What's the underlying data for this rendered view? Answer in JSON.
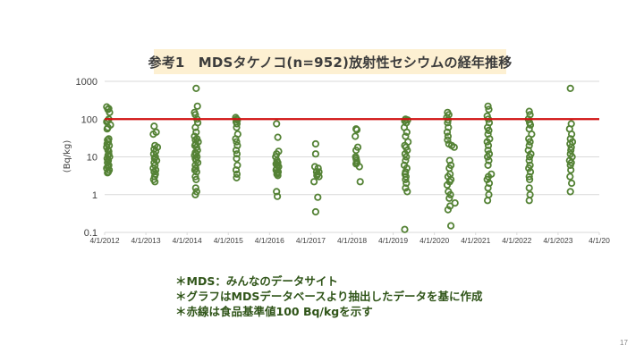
{
  "slide": {
    "page_number": "17",
    "notes": [
      "＊MDS：みんなのデータサイト",
      "＊グラフはMDSデータベースより抽出したデータを基に作成",
      "＊赤線は食品基準値100 Bq/kgを示す"
    ]
  },
  "colors": {
    "marker": "#548235",
    "reference_line": "#d01010",
    "grid": "#d9d9d9",
    "title_bg": "#fdf0d2"
  },
  "chart_data": {
    "type": "scatter",
    "title": "参考1　MDSタケノコ(n=952)放射性セシウムの経年推移",
    "xlabel": "",
    "ylabel": "(Bq/kg)",
    "yscale": "log",
    "ylim": [
      0.1,
      1000
    ],
    "yticks": [
      "1000",
      "100",
      "10",
      "1",
      "0.1"
    ],
    "ytick_values": [
      1000,
      100,
      10,
      1,
      0.1
    ],
    "xlim": [
      2012,
      2024
    ],
    "xticks": [
      "4/1/2012",
      "4/1/2013",
      "4/1/2014",
      "4/1/2015",
      "4/1/2016",
      "4/1/2017",
      "4/1/2018",
      "4/1/2019",
      "4/1/2020",
      "4/1/2021",
      "4/1/2022",
      "4/1/2023",
      "4/1/20"
    ],
    "grid": true,
    "reference_line": {
      "value": 100,
      "label": "食品基準値100 Bq/kg"
    },
    "series": [
      {
        "name": "2012",
        "x": [
          2012.05,
          2012.08,
          2012.1,
          2012.12,
          2012.07,
          2012.1,
          2012.05,
          2012.14,
          2012.08,
          2012.06,
          2012.1,
          2012.09,
          2012.07,
          2012.11,
          2012.05,
          2012.08,
          2012.1,
          2012.12,
          2012.06,
          2012.09,
          2012.07,
          2012.1,
          2012.08,
          2012.05,
          2012.11,
          2012.09,
          2012.07,
          2012.06,
          2012.1,
          2012.08
        ],
        "y": [
          210,
          180,
          190,
          150,
          90,
          100,
          85,
          70,
          60,
          55,
          30,
          25,
          28,
          20,
          18,
          15,
          12,
          10,
          9,
          8,
          7,
          6,
          5.5,
          5,
          4.5,
          4,
          3.8,
          22,
          14,
          11
        ]
      },
      {
        "name": "2013",
        "x": [
          2013.2,
          2013.25,
          2013.18,
          2013.22,
          2013.28,
          2013.2,
          2013.24,
          2013.19,
          2013.23,
          2013.21,
          2013.26,
          2013.2,
          2013.22,
          2013.18,
          2013.24,
          2013.2,
          2013.23,
          2013.21,
          2013.19,
          2013.22
        ],
        "y": [
          65,
          45,
          40,
          20,
          18,
          16,
          14,
          12,
          10,
          9,
          8,
          7,
          6,
          5,
          4.5,
          4,
          3.5,
          3,
          2.5,
          2.2
        ]
      },
      {
        "name": "2014",
        "x": [
          2014.22,
          2014.25,
          2014.18,
          2014.2,
          2014.24,
          2014.26,
          2014.2,
          2014.22,
          2014.18,
          2014.24,
          2014.2,
          2014.27,
          2014.21,
          2014.19,
          2014.23,
          2014.25,
          2014.2,
          2014.22,
          2014.18,
          2014.24,
          2014.2,
          2014.22,
          2014.26,
          2014.2,
          2014.21,
          2014.19,
          2014.23,
          2014.2,
          2014.22,
          2014.21,
          2014.23,
          2014.2
        ],
        "y": [
          650,
          220,
          150,
          130,
          100,
          80,
          60,
          45,
          35,
          30,
          28,
          25,
          22,
          20,
          18,
          15,
          13,
          12,
          11,
          10,
          9,
          8,
          7,
          6,
          5,
          4.5,
          4,
          3,
          2.5,
          1.5,
          1.2,
          1
        ]
      },
      {
        "name": "2015",
        "x": [
          2015.18,
          2015.2,
          2015.22,
          2015.19,
          2015.21,
          2015.2,
          2015.23,
          2015.18,
          2015.2,
          2015.22,
          2015.19,
          2015.21,
          2015.2,
          2015.22,
          2015.19,
          2015.21,
          2015.2
        ],
        "y": [
          110,
          100,
          95,
          85,
          75,
          60,
          40,
          30,
          25,
          20,
          15,
          12,
          9,
          6,
          4.5,
          3.5,
          2.8
        ]
      },
      {
        "name": "2016",
        "x": [
          2016.17,
          2016.2,
          2016.17,
          2016.22,
          2016.15,
          2016.18,
          2016.2,
          2016.16,
          2016.19,
          2016.22,
          2016.18,
          2016.16,
          2016.21,
          2016.19,
          2016.18,
          2016.2,
          2016.17,
          2016.19
        ],
        "y": [
          75,
          33,
          12,
          14,
          10,
          8,
          7,
          6.5,
          6,
          5.5,
          5,
          4.5,
          4,
          3.8,
          3.5,
          3.2,
          1.2,
          0.9
        ]
      },
      {
        "name": "2017",
        "x": [
          2017.12,
          2017.12,
          2017.1,
          2017.14,
          2017.18,
          2017.16,
          2017.2,
          2017.15,
          2017.2,
          2017.08,
          2017.17,
          2017.12
        ],
        "y": [
          22,
          12,
          5.5,
          4,
          5,
          3.5,
          4,
          3.2,
          3,
          2.2,
          0.85,
          0.35
        ]
      },
      {
        "name": "2018",
        "x": [
          2018.1,
          2018.12,
          2018.08,
          2018.1,
          2018.14,
          2018.09,
          2018.11,
          2018.12,
          2018.1,
          2018.18,
          2018.2,
          2018.1
        ],
        "y": [
          55,
          52,
          35,
          15,
          18,
          10,
          8,
          7,
          6.5,
          5.5,
          2.2,
          9
        ]
      },
      {
        "name": "2019",
        "x": [
          2019.3,
          2019.35,
          2019.28,
          2019.32,
          2019.27,
          2019.33,
          2019.3,
          2019.36,
          2019.28,
          2019.31,
          2019.34,
          2019.29,
          2019.32,
          2019.3,
          2019.27,
          2019.33,
          2019.3,
          2019.29,
          2019.31,
          2019.3,
          2019.32,
          2019.3,
          2019.34,
          2019.28
        ],
        "y": [
          100,
          95,
          90,
          80,
          60,
          45,
          35,
          25,
          20,
          18,
          15,
          12,
          10,
          8,
          6,
          5,
          4,
          3.5,
          3,
          2.5,
          2,
          1.5,
          1.2,
          0.12
        ]
      },
      {
        "name": "2020",
        "x": [
          2020.32,
          2020.35,
          2020.3,
          2020.33,
          2020.32,
          2020.34,
          2020.31,
          2020.33,
          2020.32,
          2020.35,
          2020.42,
          2020.48,
          2020.37,
          2020.4,
          2020.36,
          2020.38,
          2020.33,
          2020.4,
          2020.37,
          2020.31,
          2020.34,
          2020.39,
          2020.36,
          2020.5,
          2020.38,
          2020.33,
          2020.4
        ],
        "y": [
          150,
          130,
          110,
          95,
          80,
          60,
          45,
          35,
          28,
          22,
          20,
          18,
          8,
          6,
          5,
          3.5,
          3,
          2.5,
          2.2,
          1.8,
          1.2,
          1,
          0.8,
          0.6,
          0.5,
          0.4,
          0.15
        ]
      },
      {
        "name": "2021",
        "x": [
          2021.3,
          2021.32,
          2021.28,
          2021.31,
          2021.33,
          2021.29,
          2021.32,
          2021.3,
          2021.34,
          2021.28,
          2021.31,
          2021.3,
          2021.33,
          2021.29,
          2021.32,
          2021.3,
          2021.38,
          2021.31,
          2021.28,
          2021.33,
          2021.3,
          2021.32,
          2021.29
        ],
        "y": [
          220,
          180,
          120,
          100,
          80,
          60,
          50,
          40,
          30,
          25,
          20,
          15,
          12,
          10,
          8,
          6,
          3.5,
          3,
          2.5,
          2,
          1.5,
          1,
          0.7
        ]
      },
      {
        "name": "2022",
        "x": [
          2022.3,
          2022.32,
          2022.28,
          2022.31,
          2022.33,
          2022.3,
          2022.36,
          2022.29,
          2022.32,
          2022.3,
          2022.28,
          2022.34,
          2022.31,
          2022.3,
          2022.32,
          2022.29,
          2022.33,
          2022.3,
          2022.31,
          2022.3,
          2022.32,
          2022.3
        ],
        "y": [
          160,
          130,
          100,
          80,
          70,
          55,
          40,
          30,
          25,
          20,
          15,
          12,
          10,
          8,
          6,
          5,
          4,
          3,
          2.5,
          1.5,
          1,
          0.7
        ]
      },
      {
        "name": "2023",
        "x": [
          2023.3,
          2023.32,
          2023.28,
          2023.33,
          2023.3,
          2023.35,
          2023.29,
          2023.32,
          2023.31,
          2023.3,
          2023.34,
          2023.28,
          2023.32,
          2023.3,
          2023.31,
          2023.29,
          2023.33,
          2023.3
        ],
        "y": [
          650,
          75,
          55,
          40,
          30,
          25,
          22,
          18,
          15,
          12,
          10,
          8,
          7,
          6,
          4.5,
          3,
          2,
          1.2
        ]
      }
    ]
  }
}
